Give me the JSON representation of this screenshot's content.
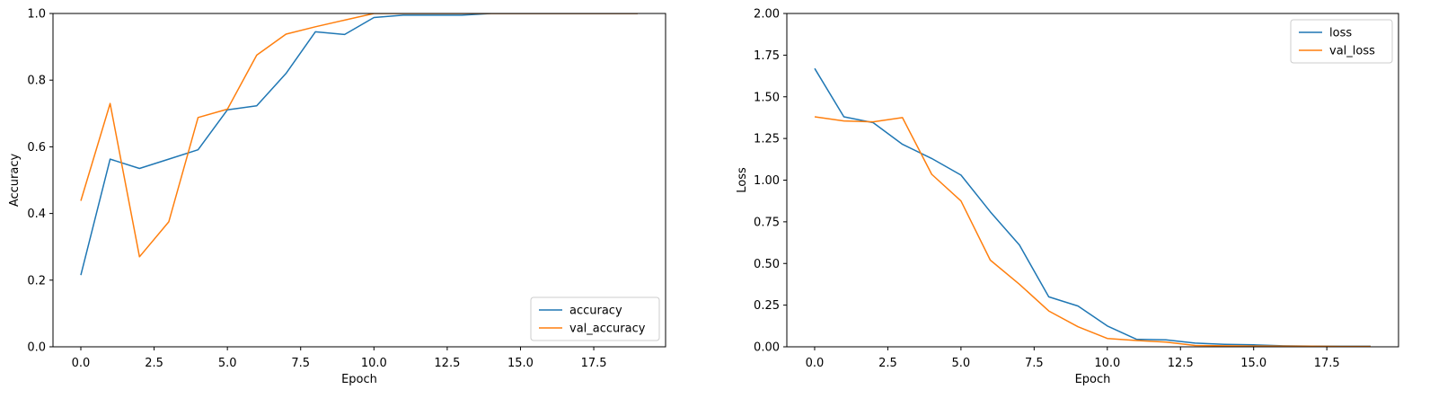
{
  "chart_data": [
    {
      "type": "line",
      "title": "",
      "xlabel": "Epoch",
      "ylabel": "Accuracy",
      "xlim": [
        -0.95,
        19.95
      ],
      "ylim": [
        0,
        1.0
      ],
      "xticks": [
        "0.0",
        "2.5",
        "5.0",
        "7.5",
        "10.0",
        "12.5",
        "15.0",
        "17.5"
      ],
      "yticks": [
        "0.0",
        "0.2",
        "0.4",
        "0.6",
        "0.8",
        "1.0"
      ],
      "grid": false,
      "legend_position": "lower-right",
      "x": [
        0,
        1,
        2,
        3,
        4,
        5,
        6,
        7,
        8,
        9,
        10,
        11,
        12,
        13,
        14,
        15,
        16,
        17,
        18,
        19
      ],
      "series": [
        {
          "name": "accuracy",
          "color": "#1f77b4",
          "values": [
            0.215,
            0.563,
            0.535,
            0.563,
            0.591,
            0.711,
            0.723,
            0.82,
            0.945,
            0.937,
            0.988,
            0.995,
            0.995,
            0.995,
            1.0,
            1.0,
            1.0,
            1.0,
            1.0,
            1.0
          ]
        },
        {
          "name": "val_accuracy",
          "color": "#ff7f0e",
          "values": [
            0.438,
            0.73,
            0.27,
            0.375,
            0.688,
            0.713,
            0.875,
            0.938,
            0.96,
            0.98,
            1.0,
            1.0,
            1.0,
            1.0,
            1.0,
            1.0,
            1.0,
            1.0,
            1.0,
            1.0
          ]
        }
      ]
    },
    {
      "type": "line",
      "title": "",
      "xlabel": "Epoch",
      "ylabel": "Loss",
      "xlim": [
        -0.95,
        19.95
      ],
      "ylim": [
        0,
        2.0
      ],
      "xticks": [
        "0.0",
        "2.5",
        "5.0",
        "7.5",
        "10.0",
        "12.5",
        "15.0",
        "17.5"
      ],
      "yticks": [
        "0.00",
        "0.25",
        "0.50",
        "0.75",
        "1.00",
        "1.25",
        "1.50",
        "1.75",
        "2.00"
      ],
      "grid": false,
      "legend_position": "upper-right",
      "x": [
        0,
        1,
        2,
        3,
        4,
        5,
        6,
        7,
        8,
        9,
        10,
        11,
        12,
        13,
        14,
        15,
        16,
        17,
        18,
        19
      ],
      "series": [
        {
          "name": "loss",
          "color": "#1f77b4",
          "values": [
            1.67,
            1.38,
            1.345,
            1.215,
            1.13,
            1.03,
            0.81,
            0.61,
            0.3,
            0.245,
            0.125,
            0.045,
            0.042,
            0.022,
            0.015,
            0.012,
            0.006,
            0.004,
            0.003,
            0.003
          ]
        },
        {
          "name": "val_loss",
          "color": "#ff7f0e",
          "values": [
            1.38,
            1.355,
            1.35,
            1.375,
            1.035,
            0.875,
            0.52,
            0.375,
            0.215,
            0.12,
            0.05,
            0.038,
            0.028,
            0.008,
            0.006,
            0.005,
            0.004,
            0.003,
            0.002,
            0.002
          ]
        }
      ]
    }
  ]
}
